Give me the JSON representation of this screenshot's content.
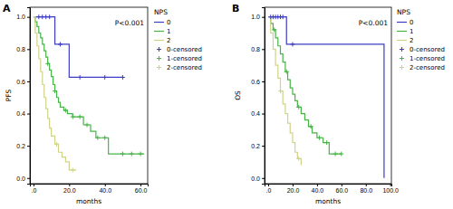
{
  "chart_data": [
    {
      "type": "line",
      "panel_label": "A",
      "annotation": "P<0.001",
      "x_label": "months",
      "y_label": "PFS",
      "legend_title": "NPS",
      "legend": "right",
      "xlim": [
        -2,
        64
      ],
      "ylim": [
        -0.035,
        1.06
      ],
      "xticks": [
        {
          "value": 0,
          "label": ".0"
        },
        {
          "value": 20,
          "label": "20.0"
        },
        {
          "value": 40,
          "label": "40.0"
        },
        {
          "value": 60,
          "label": "60.0"
        }
      ],
      "yticks": [
        {
          "value": 0,
          "label": "0.0"
        },
        {
          "value": 0.2,
          "label": "0.2"
        },
        {
          "value": 0.4,
          "label": "0.4"
        },
        {
          "value": 0.6,
          "label": "0.6"
        },
        {
          "value": 0.8,
          "label": "0.8"
        },
        {
          "value": 1,
          "label": "1.0"
        }
      ],
      "series": [
        {
          "name": "0",
          "type": "line",
          "line_style": "step",
          "color": "#3d3dc4",
          "x": [
            0,
            12,
            20,
            50
          ],
          "values": [
            1,
            0.83,
            0.625,
            0.625
          ]
        },
        {
          "name": "1",
          "type": "line",
          "line_style": "step",
          "color": "#47b447",
          "x": [
            0,
            1,
            2,
            3,
            4,
            5,
            6,
            7,
            8,
            9,
            10,
            11,
            12,
            13,
            14,
            15,
            17,
            19,
            22,
            25,
            28,
            32,
            35,
            42,
            62
          ],
          "values": [
            1,
            0.97,
            0.94,
            0.9,
            0.87,
            0.83,
            0.79,
            0.75,
            0.71,
            0.67,
            0.63,
            0.58,
            0.54,
            0.5,
            0.47,
            0.44,
            0.42,
            0.4,
            0.38,
            0.38,
            0.33,
            0.29,
            0.25,
            0.15,
            0.15
          ]
        },
        {
          "name": "2",
          "type": "line",
          "line_style": "step",
          "color": "#cfd38a",
          "x": [
            0,
            1,
            2,
            3,
            4,
            5,
            6,
            7,
            8,
            9,
            10,
            12,
            14,
            16,
            18,
            20,
            24
          ],
          "values": [
            1,
            0.9,
            0.82,
            0.74,
            0.66,
            0.58,
            0.5,
            0.43,
            0.37,
            0.31,
            0.26,
            0.21,
            0.16,
            0.13,
            0.1,
            0.05,
            0.05
          ]
        },
        {
          "name": "0-censored",
          "type": "scatter",
          "marker": "plus",
          "color": "#3d3dc4",
          "x": [
            3,
            5,
            7,
            9,
            15,
            26,
            40,
            50
          ],
          "values": [
            1,
            1,
            1,
            1,
            0.83,
            0.625,
            0.625,
            0.625
          ]
        },
        {
          "name": "1-censored",
          "type": "scatter",
          "marker": "plus",
          "color": "#47b447",
          "x": [
            8,
            12,
            18,
            22,
            26,
            30,
            36,
            40,
            50,
            55,
            60
          ],
          "values": [
            0.71,
            0.54,
            0.42,
            0.38,
            0.38,
            0.33,
            0.25,
            0.25,
            0.15,
            0.15,
            0.15
          ]
        },
        {
          "name": "2-censored",
          "type": "scatter",
          "marker": "plus",
          "color": "#cfd38a",
          "x": [
            13,
            22
          ],
          "values": [
            0.21,
            0.05
          ]
        }
      ]
    },
    {
      "type": "line",
      "panel_label": "B",
      "annotation": "P<0.001",
      "x_label": "months",
      "y_label": "OS",
      "legend_title": "NPS",
      "legend": "right",
      "xlim": [
        -3,
        101
      ],
      "ylim": [
        -0.035,
        1.06
      ],
      "xticks": [
        {
          "value": 0,
          "label": ".0"
        },
        {
          "value": 20,
          "label": "20.0"
        },
        {
          "value": 40,
          "label": "40.0"
        },
        {
          "value": 60,
          "label": "60.0"
        },
        {
          "value": 80,
          "label": "80.0"
        },
        {
          "value": 100,
          "label": "100.0"
        }
      ],
      "yticks": [
        {
          "value": 0,
          "label": "0.0"
        },
        {
          "value": 0.2,
          "label": "0.2"
        },
        {
          "value": 0.4,
          "label": "0.4"
        },
        {
          "value": 0.6,
          "label": "0.6"
        },
        {
          "value": 0.8,
          "label": "0.8"
        },
        {
          "value": 1,
          "label": "1.0"
        }
      ],
      "series": [
        {
          "name": "0",
          "type": "line",
          "line_style": "step",
          "color": "#3d3dc4",
          "x": [
            0,
            15,
            95
          ],
          "values": [
            1,
            0.83,
            0
          ]
        },
        {
          "name": "1",
          "type": "line",
          "line_style": "step",
          "color": "#47b447",
          "x": [
            0,
            2,
            4,
            6,
            8,
            10,
            12,
            14,
            16,
            18,
            20,
            22,
            24,
            27,
            30,
            33,
            36,
            40,
            45,
            50,
            60
          ],
          "values": [
            1,
            0.96,
            0.92,
            0.87,
            0.82,
            0.77,
            0.72,
            0.66,
            0.61,
            0.56,
            0.52,
            0.48,
            0.44,
            0.4,
            0.36,
            0.32,
            0.28,
            0.25,
            0.22,
            0.15,
            0.15
          ]
        },
        {
          "name": "2",
          "type": "line",
          "line_style": "step",
          "color": "#cfd38a",
          "x": [
            0,
            2,
            4,
            6,
            8,
            10,
            12,
            14,
            16,
            18,
            20,
            22,
            24,
            27
          ],
          "values": [
            1,
            0.9,
            0.8,
            0.7,
            0.62,
            0.54,
            0.46,
            0.4,
            0.34,
            0.28,
            0.22,
            0.16,
            0.12,
            0.08
          ]
        },
        {
          "name": "0-censored",
          "type": "scatter",
          "marker": "plus",
          "color": "#3d3dc4",
          "x": [
            2,
            4,
            6,
            8,
            10,
            12,
            20
          ],
          "values": [
            1,
            1,
            1,
            1,
            1,
            1,
            0.83
          ]
        },
        {
          "name": "1-censored",
          "type": "scatter",
          "marker": "plus",
          "color": "#47b447",
          "x": [
            5,
            15,
            25,
            35,
            42,
            48,
            55,
            60
          ],
          "values": [
            0.92,
            0.66,
            0.44,
            0.32,
            0.25,
            0.22,
            0.15,
            0.15
          ]
        },
        {
          "name": "2-censored",
          "type": "scatter",
          "marker": "plus",
          "color": "#cfd38a",
          "x": [
            10,
            25
          ],
          "values": [
            0.54,
            0.12
          ]
        }
      ]
    }
  ]
}
